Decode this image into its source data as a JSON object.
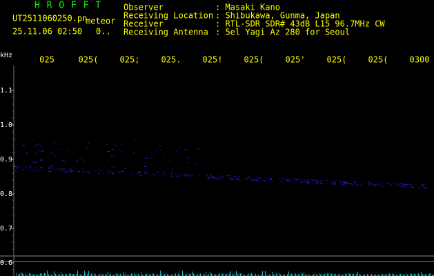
{
  "app": {
    "name": "H R O F F T",
    "file": "UT2511060250.pn",
    "mode": "meteor",
    "datetime": "25.11.06 02:50",
    "count": "0.."
  },
  "info": {
    "rows": [
      {
        "label": "Observer",
        "value": ": Masaki Kano"
      },
      {
        "label": "Receiving Location",
        "value": ": Shibukawa, Gunma, Japan"
      },
      {
        "label": "Receiver",
        "value": ": RTL-SDR SDR# 43dB L15 96.7MHz CW"
      },
      {
        "label": "Receiving Antenna",
        "value": ": 5el Yagi Az 280 for Seoul"
      }
    ]
  },
  "spectrogram": {
    "unit": "kHz",
    "time_labels": [
      "025",
      "025(",
      "025;",
      "025.",
      "025!",
      "025(",
      "025'",
      "025(",
      "025(",
      "0300"
    ],
    "freq_labels": [
      "1.1",
      "1.0",
      "0.9",
      "0.8",
      "0.7",
      "0.6"
    ]
  }
}
